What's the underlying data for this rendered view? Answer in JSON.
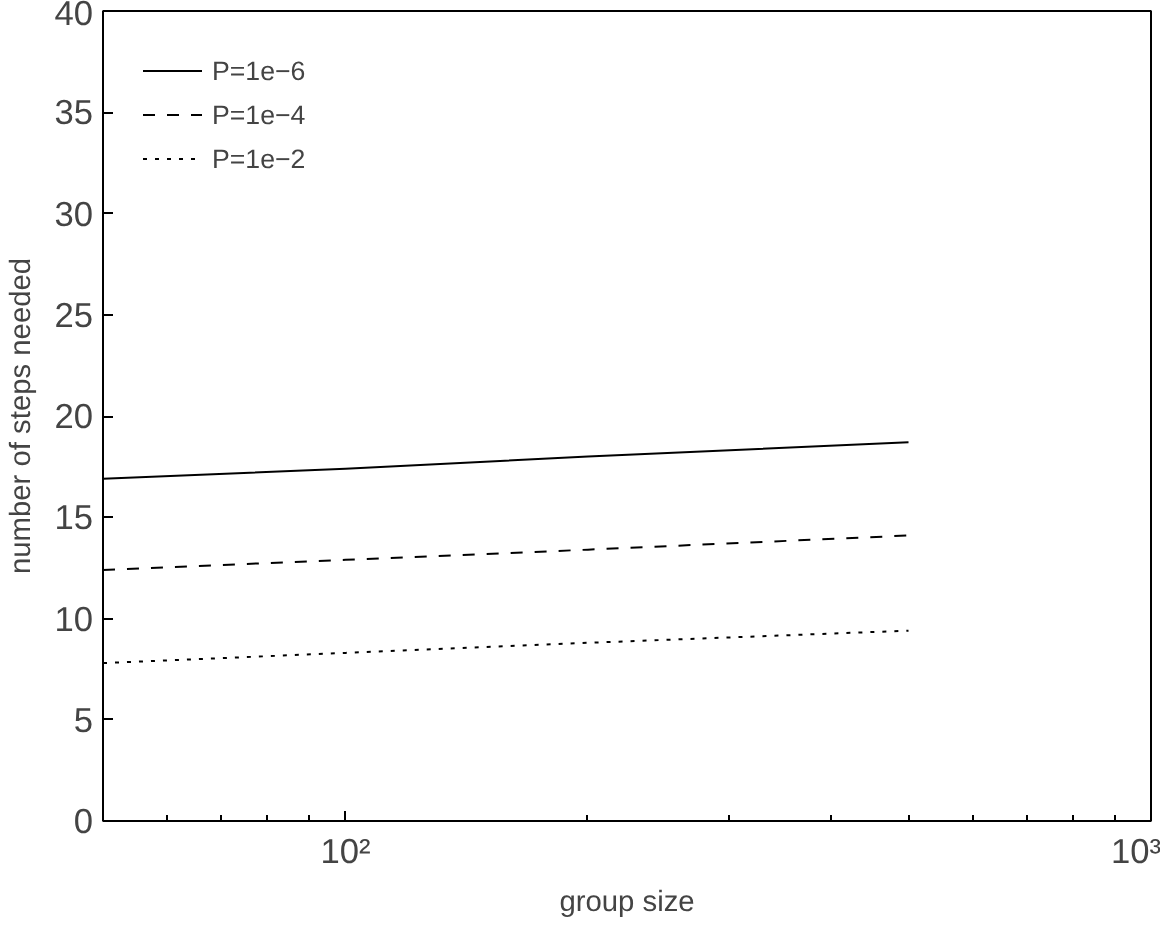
{
  "chart_data": {
    "type": "line",
    "xlabel": "group size",
    "ylabel": "number of steps needed",
    "x": [
      50,
      100,
      200,
      500
    ],
    "series": [
      {
        "name": "P=1e−6",
        "color": "#000000",
        "line_style": "solid",
        "values": [
          16.9,
          17.4,
          18.0,
          18.7
        ]
      },
      {
        "name": "P=1e−4",
        "color": "#000000",
        "line_style": "dashed",
        "values": [
          12.4,
          12.9,
          13.4,
          14.1
        ]
      },
      {
        "name": "P=1e−2",
        "color": "#000000",
        "line_style": "dotted",
        "values": [
          7.8,
          8.3,
          8.8,
          9.4
        ]
      }
    ],
    "log": "x",
    "xlim": [
      50,
      1000
    ],
    "ylim": [
      0,
      40
    ],
    "xticks": [
      {
        "value": 100,
        "label": "10²"
      },
      {
        "value": 1000,
        "label": "10³"
      }
    ],
    "yticks": [
      0,
      5,
      10,
      15,
      20,
      25,
      30,
      35,
      40
    ],
    "grid": false,
    "legend": "top left"
  }
}
